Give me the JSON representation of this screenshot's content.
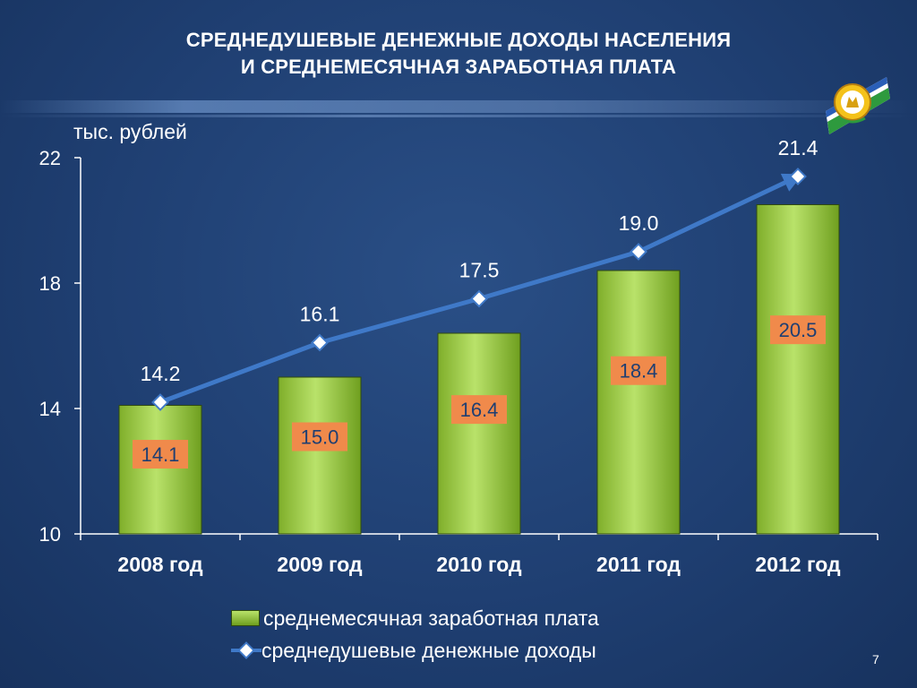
{
  "title_lines": [
    "СРЕДНЕДУШЕВЫЕ ДЕНЕЖНЫЕ ДОХОДЫ НАСЕЛЕНИЯ",
    "И СРЕДНЕМЕСЯЧНАЯ ЗАРАБОТНАЯ ПЛАТА"
  ],
  "page_number": "7",
  "colors": {
    "background": "#1f3f72",
    "bar_top": "#b9e26a",
    "bar_bottom": "#6f9f1f",
    "bar_label_bg": "#f08a4b",
    "line": "#3f79c8",
    "marker_fill": "#ffffff",
    "axis": "#ffffff"
  },
  "chart_data": {
    "type": "bar",
    "categories": [
      "2008 год",
      "2009 год",
      "2010 год",
      "2011 год",
      "2012 год"
    ],
    "ylabel": "тыс. рублей",
    "ylim": [
      10,
      22
    ],
    "yticks": [
      10,
      14,
      18,
      22
    ],
    "grid": false,
    "legend_placement": "bottom",
    "series": [
      {
        "name": "среднемесячная заработная плата",
        "type": "bar",
        "values": [
          14.1,
          15.0,
          16.4,
          18.4,
          20.5
        ],
        "labels": [
          "14.1",
          "15.0",
          "16.4",
          "18.4",
          "20.5"
        ]
      },
      {
        "name": "среднедушевые денежные доходы",
        "type": "line",
        "values": [
          14.2,
          16.1,
          17.5,
          19.0,
          21.4
        ],
        "labels": [
          "14.2",
          "16.1",
          "17.5",
          "19.0",
          "21.4"
        ]
      }
    ]
  }
}
